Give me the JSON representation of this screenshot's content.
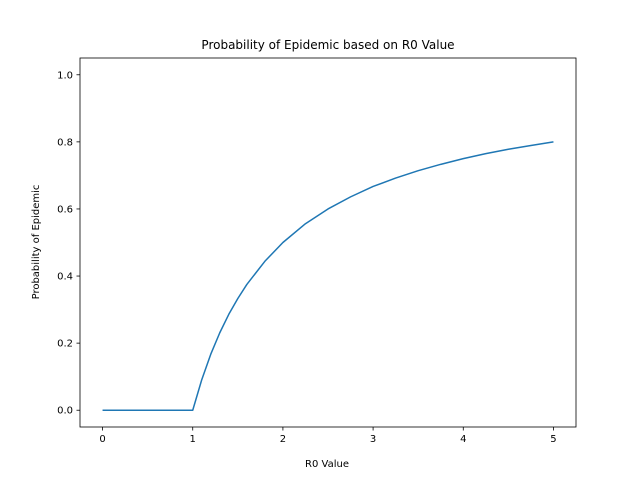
{
  "chart_data": {
    "type": "line",
    "title": "Probability of Epidemic based on R0 Value",
    "xlabel": "R0 Value",
    "ylabel": "Probability of Epidemic",
    "xlim": [
      -0.25,
      5.25
    ],
    "ylim": [
      -0.05,
      1.05
    ],
    "xticks": [
      0,
      1,
      2,
      3,
      4,
      5
    ],
    "xtick_labels": [
      "0",
      "1",
      "2",
      "3",
      "4",
      "5"
    ],
    "yticks": [
      0.0,
      0.2,
      0.4,
      0.6,
      0.8,
      1.0
    ],
    "ytick_labels": [
      "0.0",
      "0.2",
      "0.4",
      "0.6",
      "0.8",
      "1.0"
    ],
    "grid": false,
    "series": [
      {
        "color": "#1f77b4",
        "x": [
          0,
          0.25,
          0.5,
          0.75,
          1.0,
          1.1,
          1.2,
          1.3,
          1.4,
          1.5,
          1.6,
          1.8,
          2.0,
          2.25,
          2.5,
          2.75,
          3.0,
          3.25,
          3.5,
          3.75,
          4.0,
          4.25,
          4.5,
          4.75,
          5.0
        ],
        "y": [
          0,
          0,
          0,
          0,
          0,
          0.091,
          0.167,
          0.231,
          0.286,
          0.333,
          0.375,
          0.444,
          0.5,
          0.556,
          0.6,
          0.636,
          0.667,
          0.692,
          0.714,
          0.733,
          0.75,
          0.765,
          0.778,
          0.789,
          0.8
        ]
      }
    ]
  }
}
